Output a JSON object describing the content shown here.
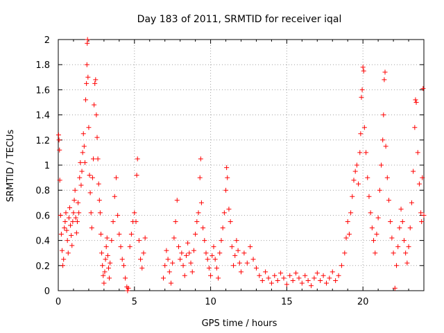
{
  "chart_data": {
    "type": "scatter",
    "title": "Day 183 of 2011, SRMTID for receiver iqal",
    "xlabel": "GPS time / hours",
    "ylabel": "SRMTID / TECUs",
    "xlim": [
      0,
      24
    ],
    "ylim": [
      0,
      2
    ],
    "xticks": [
      "0",
      "5",
      "10",
      "15",
      "20"
    ],
    "xtick_values": [
      0,
      5,
      10,
      15,
      20
    ],
    "yticks": [
      "0",
      "0.2",
      "0.4",
      "0.6",
      "0.8",
      "1",
      "1.2",
      "1.4",
      "1.6",
      "1.8",
      "2"
    ],
    "ytick_values": [
      0,
      0.2,
      0.4,
      0.6,
      0.8,
      1.0,
      1.2,
      1.4,
      1.6,
      1.8,
      2.0
    ],
    "grid": true,
    "marker": "+",
    "color": "#ff0000",
    "series": [
      {
        "name": "SRMTID",
        "points": [
          [
            0.02,
            1.24
          ],
          [
            0.05,
            1.2
          ],
          [
            0.08,
            1.12
          ],
          [
            0.1,
            0.88
          ],
          [
            0.15,
            0.6
          ],
          [
            0.2,
            0.45
          ],
          [
            0.25,
            0.32
          ],
          [
            0.3,
            0.2
          ],
          [
            0.35,
            0.25
          ],
          [
            0.4,
            0.5
          ],
          [
            0.45,
            0.55
          ],
          [
            0.5,
            0.62
          ],
          [
            0.55,
            0.48
          ],
          [
            0.6,
            0.4
          ],
          [
            0.65,
            0.3
          ],
          [
            0.7,
            0.58
          ],
          [
            0.75,
            0.66
          ],
          [
            0.8,
            0.52
          ],
          [
            0.85,
            0.44
          ],
          [
            0.9,
            0.36
          ],
          [
            0.95,
            0.55
          ],
          [
            1.0,
            0.62
          ],
          [
            1.05,
            0.72
          ],
          [
            1.1,
            0.8
          ],
          [
            1.15,
            0.58
          ],
          [
            1.2,
            0.46
          ],
          [
            1.25,
            0.55
          ],
          [
            1.3,
            0.7
          ],
          [
            1.35,
            0.62
          ],
          [
            1.4,
            0.9
          ],
          [
            1.45,
            1.02
          ],
          [
            1.5,
            0.84
          ],
          [
            1.55,
            0.95
          ],
          [
            1.6,
            1.1
          ],
          [
            1.65,
            1.25
          ],
          [
            1.7,
            1.15
          ],
          [
            1.75,
            1.02
          ],
          [
            1.8,
            1.52
          ],
          [
            1.85,
            1.65
          ],
          [
            1.88,
            1.8
          ],
          [
            1.9,
            1.97
          ],
          [
            1.92,
            2.0
          ],
          [
            1.95,
            1.7
          ],
          [
            2.0,
            1.3
          ],
          [
            2.05,
            0.92
          ],
          [
            2.1,
            0.78
          ],
          [
            2.15,
            0.62
          ],
          [
            2.2,
            0.5
          ],
          [
            2.25,
            0.9
          ],
          [
            2.3,
            1.05
          ],
          [
            2.35,
            1.48
          ],
          [
            2.4,
            1.65
          ],
          [
            2.45,
            1.68
          ],
          [
            2.5,
            1.4
          ],
          [
            2.55,
            1.22
          ],
          [
            2.6,
            1.05
          ],
          [
            2.65,
            0.85
          ],
          [
            2.7,
            0.72
          ],
          [
            2.75,
            0.62
          ],
          [
            2.8,
            0.45
          ],
          [
            2.85,
            0.3
          ],
          [
            2.9,
            0.2
          ],
          [
            2.95,
            0.12
          ],
          [
            3.0,
            0.06
          ],
          [
            3.05,
            0.15
          ],
          [
            3.1,
            0.25
          ],
          [
            3.15,
            0.35
          ],
          [
            3.2,
            0.42
          ],
          [
            3.25,
            0.28
          ],
          [
            3.3,
            0.18
          ],
          [
            3.35,
            0.1
          ],
          [
            3.4,
            0.22
          ],
          [
            3.5,
            0.4
          ],
          [
            3.6,
            0.55
          ],
          [
            3.7,
            0.75
          ],
          [
            3.8,
            0.9
          ],
          [
            3.9,
            0.6
          ],
          [
            4.0,
            0.45
          ],
          [
            4.1,
            0.35
          ],
          [
            4.2,
            0.25
          ],
          [
            4.3,
            0.2
          ],
          [
            4.4,
            0.1
          ],
          [
            4.5,
            0.03
          ],
          [
            4.55,
            0.0
          ],
          [
            4.6,
            0.02
          ],
          [
            4.7,
            0.35
          ],
          [
            4.8,
            0.45
          ],
          [
            4.9,
            0.55
          ],
          [
            5.0,
            0.62
          ],
          [
            5.1,
            0.55
          ],
          [
            5.15,
            0.92
          ],
          [
            5.2,
            1.05
          ],
          [
            5.3,
            0.4
          ],
          [
            5.4,
            0.25
          ],
          [
            5.5,
            0.18
          ],
          [
            5.6,
            0.3
          ],
          [
            5.7,
            0.42
          ],
          [
            6.9,
            0.1
          ],
          [
            7.0,
            0.2
          ],
          [
            7.1,
            0.32
          ],
          [
            7.2,
            0.25
          ],
          [
            7.3,
            0.15
          ],
          [
            7.4,
            0.06
          ],
          [
            7.5,
            0.22
          ],
          [
            7.6,
            0.42
          ],
          [
            7.7,
            0.55
          ],
          [
            7.8,
            0.72
          ],
          [
            7.9,
            0.35
          ],
          [
            8.0,
            0.25
          ],
          [
            8.1,
            0.3
          ],
          [
            8.2,
            0.2
          ],
          [
            8.3,
            0.12
          ],
          [
            8.4,
            0.28
          ],
          [
            8.5,
            0.38
          ],
          [
            8.6,
            0.3
          ],
          [
            8.7,
            0.22
          ],
          [
            8.8,
            0.15
          ],
          [
            8.9,
            0.32
          ],
          [
            9.0,
            0.45
          ],
          [
            9.1,
            0.55
          ],
          [
            9.2,
            0.62
          ],
          [
            9.3,
            0.9
          ],
          [
            9.35,
            1.05
          ],
          [
            9.4,
            0.7
          ],
          [
            9.5,
            0.5
          ],
          [
            9.6,
            0.4
          ],
          [
            9.7,
            0.3
          ],
          [
            9.8,
            0.25
          ],
          [
            9.9,
            0.18
          ],
          [
            10.0,
            0.12
          ],
          [
            10.1,
            0.28
          ],
          [
            10.2,
            0.35
          ],
          [
            10.3,
            0.25
          ],
          [
            10.4,
            0.18
          ],
          [
            10.5,
            0.1
          ],
          [
            10.6,
            0.3
          ],
          [
            10.7,
            0.4
          ],
          [
            10.8,
            0.5
          ],
          [
            10.9,
            0.62
          ],
          [
            11.0,
            0.8
          ],
          [
            11.05,
            0.98
          ],
          [
            11.1,
            0.9
          ],
          [
            11.2,
            0.65
          ],
          [
            11.3,
            0.55
          ],
          [
            11.4,
            0.35
          ],
          [
            11.5,
            0.2
          ],
          [
            11.6,
            0.28
          ],
          [
            11.7,
            0.4
          ],
          [
            11.8,
            0.32
          ],
          [
            11.9,
            0.22
          ],
          [
            12.0,
            0.15
          ],
          [
            12.2,
            0.3
          ],
          [
            12.4,
            0.22
          ],
          [
            12.6,
            0.35
          ],
          [
            12.8,
            0.25
          ],
          [
            13.0,
            0.18
          ],
          [
            13.2,
            0.12
          ],
          [
            13.4,
            0.08
          ],
          [
            13.6,
            0.15
          ],
          [
            13.8,
            0.1
          ],
          [
            14.0,
            0.06
          ],
          [
            14.2,
            0.12
          ],
          [
            14.4,
            0.08
          ],
          [
            14.6,
            0.14
          ],
          [
            14.8,
            0.1
          ],
          [
            15.0,
            0.05
          ],
          [
            15.2,
            0.12
          ],
          [
            15.4,
            0.08
          ],
          [
            15.6,
            0.14
          ],
          [
            15.8,
            0.1
          ],
          [
            16.0,
            0.06
          ],
          [
            16.2,
            0.12
          ],
          [
            16.4,
            0.08
          ],
          [
            16.6,
            0.04
          ],
          [
            16.8,
            0.1
          ],
          [
            17.0,
            0.14
          ],
          [
            17.2,
            0.08
          ],
          [
            17.4,
            0.12
          ],
          [
            17.6,
            0.06
          ],
          [
            17.8,
            0.1
          ],
          [
            18.0,
            0.15
          ],
          [
            18.2,
            0.08
          ],
          [
            18.4,
            0.12
          ],
          [
            18.6,
            0.2
          ],
          [
            18.8,
            0.3
          ],
          [
            18.9,
            0.42
          ],
          [
            19.0,
            0.55
          ],
          [
            19.1,
            0.45
          ],
          [
            19.2,
            0.62
          ],
          [
            19.3,
            0.75
          ],
          [
            19.4,
            0.88
          ],
          [
            19.5,
            0.95
          ],
          [
            19.6,
            1.0
          ],
          [
            19.7,
            0.85
          ],
          [
            19.8,
            1.1
          ],
          [
            19.85,
            1.25
          ],
          [
            19.9,
            1.54
          ],
          [
            19.95,
            1.6
          ],
          [
            20.0,
            1.78
          ],
          [
            20.05,
            1.75
          ],
          [
            20.1,
            1.3
          ],
          [
            20.2,
            1.1
          ],
          [
            20.3,
            0.9
          ],
          [
            20.4,
            0.75
          ],
          [
            20.5,
            0.62
          ],
          [
            20.6,
            0.5
          ],
          [
            20.7,
            0.4
          ],
          [
            20.8,
            0.3
          ],
          [
            20.9,
            0.45
          ],
          [
            21.0,
            0.58
          ],
          [
            21.1,
            0.8
          ],
          [
            21.2,
            1.0
          ],
          [
            21.3,
            1.2
          ],
          [
            21.35,
            1.4
          ],
          [
            21.4,
            1.68
          ],
          [
            21.45,
            1.74
          ],
          [
            21.5,
            1.15
          ],
          [
            21.6,
            0.9
          ],
          [
            21.7,
            0.72
          ],
          [
            21.8,
            0.55
          ],
          [
            21.9,
            0.42
          ],
          [
            22.0,
            0.3
          ],
          [
            22.1,
            0.02
          ],
          [
            22.2,
            0.2
          ],
          [
            22.3,
            0.35
          ],
          [
            22.4,
            0.5
          ],
          [
            22.5,
            0.65
          ],
          [
            22.6,
            0.55
          ],
          [
            22.7,
            0.4
          ],
          [
            22.8,
            0.3
          ],
          [
            22.9,
            0.22
          ],
          [
            23.0,
            0.35
          ],
          [
            23.1,
            0.5
          ],
          [
            23.2,
            0.7
          ],
          [
            23.3,
            0.95
          ],
          [
            23.4,
            1.3
          ],
          [
            23.45,
            1.52
          ],
          [
            23.5,
            1.5
          ],
          [
            23.6,
            1.1
          ],
          [
            23.7,
            0.85
          ],
          [
            23.8,
            0.62
          ],
          [
            23.85,
            0.55
          ],
          [
            23.9,
            0.9
          ],
          [
            23.95,
            1.61
          ],
          [
            24.0,
            0.6
          ]
        ]
      }
    ]
  }
}
